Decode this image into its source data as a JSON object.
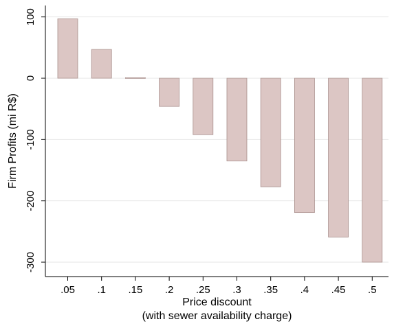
{
  "chart_data": {
    "type": "bar",
    "title": "",
    "xlabel_lines": [
      "Price discount",
      "(with sewer availability charge)"
    ],
    "ylabel": "Firm Profits (mi R$)",
    "categories": [
      ".05",
      ".1",
      ".15",
      ".2",
      ".25",
      ".3",
      ".35",
      ".4",
      ".45",
      ".5"
    ],
    "values": [
      97,
      47,
      1,
      -46,
      -92,
      -135,
      -177,
      -219,
      -259,
      -300
    ],
    "yticks": [
      100,
      0,
      -100,
      -200,
      -300
    ],
    "ylim": [
      -315,
      110
    ],
    "grid": true,
    "legend": "none",
    "colors": {
      "bar_fill": "#dcc6c4",
      "bar_stroke": "#a88e8b",
      "grid": "#e4e4e4",
      "axis": "#000000"
    }
  }
}
